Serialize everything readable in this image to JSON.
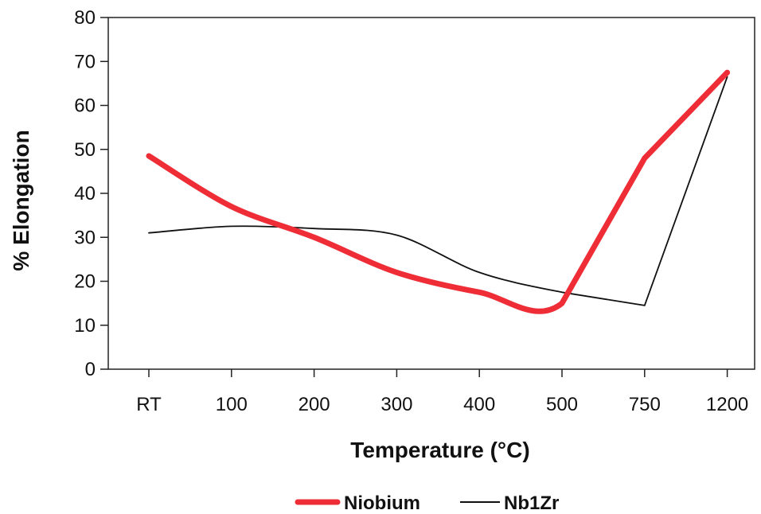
{
  "chart_data": {
    "type": "line",
    "title": "",
    "xlabel": "Temperature (°C)",
    "ylabel": "% Elongation",
    "categories": [
      "RT",
      "100",
      "200",
      "300",
      "400",
      "500",
      "750",
      "1200"
    ],
    "ylim": [
      0,
      80
    ],
    "yticks": [
      0,
      10,
      20,
      30,
      40,
      50,
      60,
      70,
      80
    ],
    "grid": false,
    "legend": "bottom-center",
    "series": [
      {
        "name": "Niobium",
        "color": "#ee2d36",
        "values": [
          48.5,
          37,
          30,
          22,
          17.5,
          15,
          48,
          67.5
        ]
      },
      {
        "name": "Nb1Zr",
        "color": "#111111",
        "values": [
          31,
          32.5,
          32,
          30.5,
          22,
          17.5,
          14.5,
          66.5
        ]
      }
    ]
  }
}
